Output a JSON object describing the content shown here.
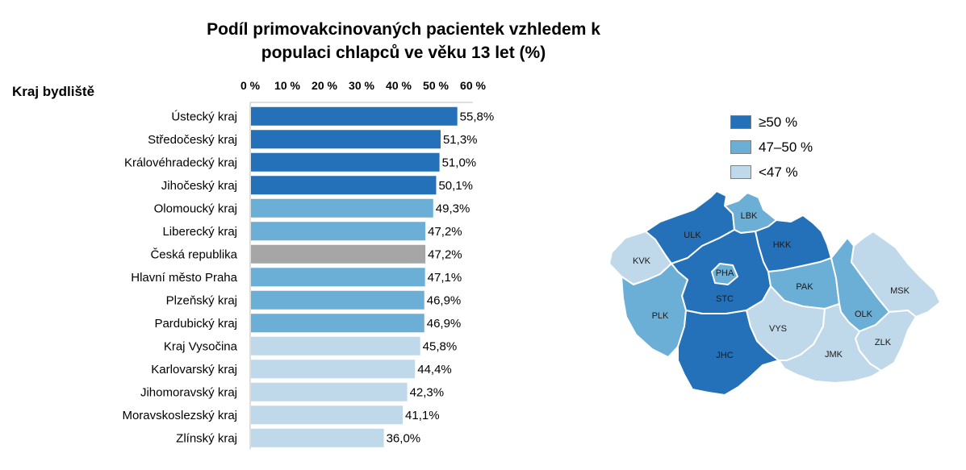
{
  "chart_data": [
    {
      "type": "bar",
      "orientation": "horizontal",
      "title_lines": [
        "Podíl primovakcinovaných pacientek vzhledem k",
        "populaci chlapců ve věku 13 let (%)"
      ],
      "ylabel": "Kraj bydliště",
      "xlim": [
        0,
        60
      ],
      "x_ticks": [
        "0 %",
        "10 %",
        "20 %",
        "30 %",
        "40 %",
        "50 %",
        "60 %"
      ],
      "x_axis_position": "top",
      "categories": [
        "Ústecký kraj",
        "Středočeský kraj",
        "Královéhradecký kraj",
        "Jihočeský kraj",
        "Olomoucký kraj",
        "Liberecký kraj",
        "Česká republika",
        "Hlavní město Praha",
        "Plzeňský kraj",
        "Pardubický kraj",
        "Kraj Vysočina",
        "Karlovarský kraj",
        "Jihomoravský kraj",
        "Moravskoslezský kraj",
        "Zlínský kraj"
      ],
      "values": [
        55.8,
        51.3,
        51.0,
        50.1,
        49.3,
        47.2,
        47.2,
        47.1,
        46.9,
        46.9,
        45.8,
        44.4,
        42.3,
        41.1,
        36.0
      ],
      "value_labels": [
        "55,8%",
        "51,3%",
        "51,0%",
        "50,1%",
        "49,3%",
        "47,2%",
        "47,2%",
        "47,1%",
        "46,9%",
        "46,9%",
        "45,8%",
        "44,4%",
        "42,3%",
        "41,1%",
        "36,0%"
      ],
      "bar_colors": [
        "#2471b9",
        "#2471b9",
        "#2471b9",
        "#2471b9",
        "#6baed6",
        "#6baed6",
        "#a6a6a6",
        "#6baed6",
        "#6baed6",
        "#6baed6",
        "#c0d9ea",
        "#c0d9ea",
        "#c0d9ea",
        "#c0d9ea",
        "#c0d9ea"
      ],
      "grid": false
    },
    {
      "type": "choropleth",
      "legend": [
        {
          "label": "≥50 %",
          "color": "#2471b9"
        },
        {
          "label": "47–50 %",
          "color": "#6baed6"
        },
        {
          "label": "<47 %",
          "color": "#c0d9ea"
        }
      ],
      "legend_position": "top-right",
      "regions": [
        {
          "code": "ULK",
          "class": "≥50 %",
          "color": "#2471b9"
        },
        {
          "code": "STC",
          "class": "≥50 %",
          "color": "#2471b9"
        },
        {
          "code": "HKK",
          "class": "≥50 %",
          "color": "#2471b9"
        },
        {
          "code": "JHC",
          "class": "≥50 %",
          "color": "#2471b9"
        },
        {
          "code": "LBK",
          "class": "47–50 %",
          "color": "#6baed6"
        },
        {
          "code": "PHA",
          "class": "47–50 %",
          "color": "#6baed6"
        },
        {
          "code": "PAK",
          "class": "47–50 %",
          "color": "#6baed6"
        },
        {
          "code": "PLK",
          "class": "47–50 %",
          "color": "#6baed6"
        },
        {
          "code": "OLK",
          "class": "47–50 %",
          "color": "#6baed6"
        },
        {
          "code": "KVK",
          "class": "<47 %",
          "color": "#c0d9ea"
        },
        {
          "code": "VYS",
          "class": "<47 %",
          "color": "#c0d9ea"
        },
        {
          "code": "JMK",
          "class": "<47 %",
          "color": "#c0d9ea"
        },
        {
          "code": "MSK",
          "class": "<47 %",
          "color": "#c0d9ea"
        },
        {
          "code": "ZLK",
          "class": "<47 %",
          "color": "#c0d9ea"
        }
      ]
    }
  ]
}
